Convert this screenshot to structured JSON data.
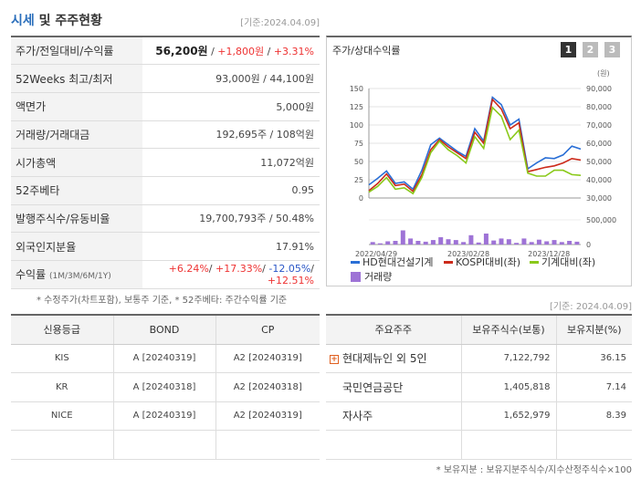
{
  "header": {
    "title_blue": "시세",
    "title_rest": " 및 주주현황",
    "base_date": "[기준:2024.04.09]"
  },
  "price_table": {
    "rows": [
      {
        "label": "주가/전일대비/수익률",
        "price": "56,200원",
        "change": "+1,800원",
        "rate": "+3.31%"
      },
      {
        "label": "52Weeks 최고/최저",
        "value": "93,000원 / 44,100원"
      },
      {
        "label": "액면가",
        "value": "5,000원"
      },
      {
        "label": "거래량/거래대금",
        "value": "192,695주 / 108억원"
      },
      {
        "label": "시가총액",
        "value": "11,072억원"
      },
      {
        "label": "52주베타",
        "value": "0.95"
      },
      {
        "label": "발행주식수/유동비율",
        "value": "19,700,793주 / 50.48%"
      },
      {
        "label": "외국인지분율",
        "value": "17.91%"
      },
      {
        "label": "수익률",
        "label_small": "(1M/3M/6M/1Y)",
        "r1": "+6.24%",
        "r2": "+17.33%",
        "r3": "-12.05%",
        "r4": "+12.51%"
      }
    ],
    "footnote": "* 수정주가(차트포함), 보통주 기준, * 52주베타: 주간수익률 기준"
  },
  "chart_panel": {
    "title": "주가/상대수익률",
    "pages": [
      "1",
      "2",
      "3"
    ],
    "active_page": "1",
    "colors": {
      "page_active": "#333333",
      "page_inactive": "#bbbbbb"
    }
  },
  "chart_data": {
    "type": "line",
    "x_ticks": [
      "2022/04/29",
      "2023/02/28",
      "2023/12/28"
    ],
    "left_axis": {
      "ticks": [
        "150",
        "125",
        "100",
        "75",
        "50",
        "25",
        "0"
      ],
      "min": 0,
      "max": 150
    },
    "right_axis": {
      "unit": "(원)",
      "ticks": [
        "90,000",
        "80,000",
        "70,000",
        "60,000",
        "50,000",
        "40,000",
        "30,000"
      ],
      "min": 30000,
      "max": 90000
    },
    "volume_axis": {
      "ticks": [
        "500,000",
        "0"
      ],
      "max": 700000
    },
    "series": [
      {
        "name": "HD현대건설기계",
        "color": "#2a6fd6",
        "values": [
          18,
          27,
          37,
          20,
          22,
          12,
          38,
          73,
          82,
          73,
          64,
          57,
          95,
          78,
          138,
          128,
          100,
          108,
          40,
          48,
          55,
          54,
          59,
          71,
          67
        ]
      },
      {
        "name": "KOSPI대비(좌)",
        "color": "#cc2a1a",
        "values": [
          10,
          20,
          33,
          17,
          19,
          9,
          32,
          66,
          80,
          70,
          62,
          54,
          90,
          75,
          135,
          122,
          95,
          103,
          36,
          39,
          42,
          44,
          48,
          54,
          52
        ]
      },
      {
        "name": "기계대비(좌)",
        "color": "#8ac91a",
        "values": [
          8,
          16,
          28,
          12,
          14,
          6,
          28,
          62,
          78,
          66,
          58,
          48,
          84,
          68,
          124,
          112,
          80,
          93,
          34,
          30,
          30,
          38,
          38,
          32,
          31
        ]
      }
    ],
    "volume": {
      "name": "거래량",
      "color": "#9e73d6",
      "values": [
        60000,
        30000,
        80000,
        90000,
        350000,
        150000,
        90000,
        70000,
        110000,
        180000,
        130000,
        110000,
        60000,
        230000,
        50000,
        270000,
        100000,
        150000,
        130000,
        40000,
        150000,
        60000,
        120000,
        80000,
        110000,
        60000,
        90000,
        70000
      ]
    },
    "grid": true
  },
  "base_date_2": "[기준: 2024.04.09]",
  "credit_table": {
    "headers": [
      "신용등급",
      "BOND",
      "CP"
    ],
    "rows": [
      [
        "KIS",
        "A [20240319]",
        "A2 [20240319]"
      ],
      [
        "KR",
        "A [20240318]",
        "A2 [20240318]"
      ],
      [
        "NICE",
        "A [20240319]",
        "A2 [20240319]"
      ]
    ]
  },
  "holder_table": {
    "headers": [
      "주요주주",
      "보유주식수(보통)",
      "보유지분(%)"
    ],
    "rows": [
      {
        "name": "현대제뉴인 외 5인",
        "shares": "7,122,792",
        "pct": "36.15",
        "expand": true
      },
      {
        "name": "국민연금공단",
        "shares": "1,405,818",
        "pct": "7.14",
        "expand": false
      },
      {
        "name": "자사주",
        "shares": "1,652,979",
        "pct": "8.39",
        "expand": false
      }
    ],
    "footnote": "* 보유지분 : 보유지분주식수/지수산정주식수×100"
  }
}
